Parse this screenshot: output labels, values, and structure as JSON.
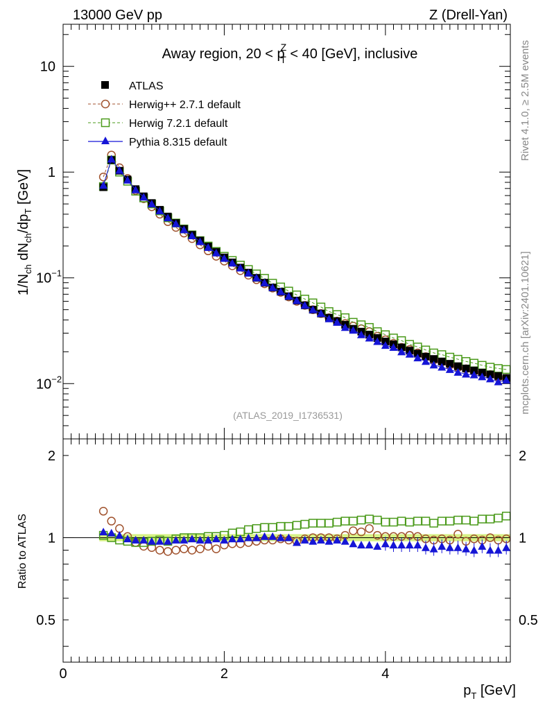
{
  "header": {
    "left": "13000 GeV pp",
    "right": "Z (Drell-Yan)"
  },
  "side_labels": {
    "top": "Rivet 4.1.0, ≥ 2.5M events",
    "bottom": "mcplots.cern.ch [arXiv:2401.10621]"
  },
  "chart_data": [
    {
      "type": "scatter",
      "panel": "main",
      "title": "Away region, 20 < p_T^Z < 40 [GeV], inclusive",
      "title_parts": {
        "pre": "Away region, 20 < p",
        "sub": "T",
        "sup": "Z",
        "post": " < 40 [GeV], inclusive"
      },
      "ylabel": "1/N_ch dN_ch/dp_T [GeV]",
      "ylabel_parts": {
        "a": "1/N",
        "a_sub": "ch",
        "b": " dN",
        "b_sub": "ch",
        "c": "/dp",
        "c_sub": "T",
        "d": " [GeV]"
      },
      "xlim": [
        0,
        5.55
      ],
      "ylim": [
        0.003,
        25
      ],
      "yscale": "log",
      "ytick_labels": [
        {
          "value": 10,
          "label": "10"
        },
        {
          "value": 1,
          "label": "1"
        },
        {
          "value": 0.1,
          "label": "10",
          "exp": "−1"
        },
        {
          "value": 0.01,
          "label": "10",
          "exp": "−2"
        }
      ],
      "watermark": "(ATLAS_2019_I1736531)",
      "legend_position": "top-left",
      "x": [
        0.5,
        0.6,
        0.7,
        0.8,
        0.9,
        1.0,
        1.1,
        1.2,
        1.3,
        1.4,
        1.5,
        1.6,
        1.7,
        1.8,
        1.9,
        2.0,
        2.1,
        2.2,
        2.3,
        2.4,
        2.5,
        2.6,
        2.7,
        2.8,
        2.9,
        3.0,
        3.1,
        3.2,
        3.3,
        3.4,
        3.5,
        3.6,
        3.7,
        3.8,
        3.9,
        4.0,
        4.1,
        4.2,
        4.3,
        4.4,
        4.5,
        4.6,
        4.7,
        4.8,
        4.9,
        5.0,
        5.1,
        5.2,
        5.3,
        5.4,
        5.5
      ],
      "series": [
        {
          "name": "ATLAS",
          "marker": "square-filled",
          "color": "#000000",
          "values": [
            0.72,
            1.3,
            1.03,
            0.85,
            0.69,
            0.59,
            0.51,
            0.44,
            0.38,
            0.33,
            0.29,
            0.255,
            0.225,
            0.198,
            0.176,
            0.156,
            0.14,
            0.125,
            0.112,
            0.1,
            0.09,
            0.081,
            0.074,
            0.067,
            0.061,
            0.055,
            0.05,
            0.046,
            0.042,
            0.039,
            0.036,
            0.033,
            0.031,
            0.029,
            0.027,
            0.025,
            0.0235,
            0.022,
            0.0205,
            0.0192,
            0.018,
            0.0171,
            0.0162,
            0.0154,
            0.0146,
            0.0139,
            0.0133,
            0.0127,
            0.0122,
            0.0118,
            0.0113
          ]
        },
        {
          "name": "Herwig++ 2.7.1 default",
          "marker": "circle-open",
          "line": "dashed",
          "color": "#a0522d",
          "values": [
            0.9,
            1.45,
            1.1,
            0.87,
            0.67,
            0.56,
            0.47,
            0.4,
            0.34,
            0.3,
            0.265,
            0.235,
            0.205,
            0.18,
            0.16,
            0.144,
            0.13,
            0.117,
            0.106,
            0.096,
            0.088,
            0.08,
            0.073,
            0.066,
            0.06,
            0.055,
            0.05,
            0.046,
            0.042,
            0.039,
            0.037,
            0.035,
            0.033,
            0.031,
            0.028,
            0.026,
            0.024,
            0.022,
            0.021,
            0.0195,
            0.018,
            0.0167,
            0.016,
            0.015,
            0.0142,
            0.0138,
            0.013,
            0.0125,
            0.0122,
            0.0115,
            0.0112
          ]
        },
        {
          "name": "Herwig 7.2.1 default",
          "marker": "square-open",
          "line": "dashed",
          "color": "#4a9a1a",
          "values": [
            0.73,
            1.3,
            1.0,
            0.82,
            0.66,
            0.57,
            0.5,
            0.43,
            0.37,
            0.33,
            0.29,
            0.255,
            0.225,
            0.2,
            0.178,
            0.16,
            0.146,
            0.132,
            0.12,
            0.109,
            0.099,
            0.089,
            0.082,
            0.075,
            0.069,
            0.063,
            0.058,
            0.053,
            0.048,
            0.045,
            0.042,
            0.038,
            0.036,
            0.034,
            0.031,
            0.029,
            0.027,
            0.0255,
            0.0235,
            0.0222,
            0.0208,
            0.0195,
            0.0188,
            0.0178,
            0.017,
            0.0162,
            0.0156,
            0.0149,
            0.0143,
            0.0139,
            0.0136
          ]
        },
        {
          "name": "Pythia 8.315 default",
          "marker": "triangle-filled",
          "line": "solid",
          "color": "#1515d6",
          "values": [
            0.75,
            1.33,
            1.04,
            0.84,
            0.68,
            0.58,
            0.5,
            0.43,
            0.37,
            0.325,
            0.285,
            0.25,
            0.22,
            0.194,
            0.172,
            0.153,
            0.138,
            0.124,
            0.111,
            0.1,
            0.09,
            0.081,
            0.074,
            0.067,
            0.061,
            0.055,
            0.05,
            0.046,
            0.041,
            0.038,
            0.034,
            0.032,
            0.029,
            0.027,
            0.025,
            0.023,
            0.022,
            0.02,
            0.019,
            0.0175,
            0.0162,
            0.015,
            0.0143,
            0.0136,
            0.0128,
            0.0123,
            0.0121,
            0.0116,
            0.0111,
            0.0104,
            0.0108
          ]
        }
      ]
    },
    {
      "type": "scatter",
      "panel": "ratio",
      "ylabel": "Ratio to ATLAS",
      "xlabel": "p_T [GeV]",
      "xlabel_parts": {
        "a": "p",
        "a_sub": "T",
        "b": " [GeV]"
      },
      "xlim": [
        0,
        5.55
      ],
      "ylim": [
        0.35,
        2.3
      ],
      "yscale": "log",
      "ytick_labels": [
        {
          "value": 2,
          "label": "2"
        },
        {
          "value": 1,
          "label": "1"
        },
        {
          "value": 0.5,
          "label": "0.5"
        }
      ],
      "xtick_labels": [
        {
          "value": 0,
          "label": "0"
        },
        {
          "value": 2,
          "label": "2"
        },
        {
          "value": 4,
          "label": "4"
        }
      ],
      "band": {
        "low": 0.97,
        "high": 1.03,
        "color": "#ccee66"
      },
      "x": [
        0.5,
        0.6,
        0.7,
        0.8,
        0.9,
        1.0,
        1.1,
        1.2,
        1.3,
        1.4,
        1.5,
        1.6,
        1.7,
        1.8,
        1.9,
        2.0,
        2.1,
        2.2,
        2.3,
        2.4,
        2.5,
        2.6,
        2.7,
        2.8,
        2.9,
        3.0,
        3.1,
        3.2,
        3.3,
        3.4,
        3.5,
        3.6,
        3.7,
        3.8,
        3.9,
        4.0,
        4.1,
        4.2,
        4.3,
        4.4,
        4.5,
        4.6,
        4.7,
        4.8,
        4.9,
        5.0,
        5.1,
        5.2,
        5.3,
        5.4,
        5.5
      ],
      "series": [
        {
          "name": "Herwig++ 2.7.1 default",
          "marker": "circle-open",
          "color": "#a0522d",
          "values": [
            1.25,
            1.15,
            1.08,
            1.01,
            0.96,
            0.93,
            0.92,
            0.9,
            0.89,
            0.9,
            0.91,
            0.9,
            0.91,
            0.93,
            0.91,
            0.94,
            0.95,
            0.95,
            0.96,
            0.97,
            0.98,
            0.98,
            0.99,
            0.98,
            0.97,
            0.99,
            1.0,
            1.0,
            1.0,
            0.99,
            1.02,
            1.06,
            1.05,
            1.08,
            1.02,
            1.01,
            1.01,
            1.01,
            1.02,
            1.01,
            0.99,
            0.98,
            0.99,
            0.98,
            1.03,
            0.97,
            0.99,
            0.98,
            1.0,
            0.98,
            0.99
          ]
        },
        {
          "name": "Herwig 7.2.1 default",
          "marker": "square-open",
          "color": "#4a9a1a",
          "values": [
            1.02,
            1.0,
            0.98,
            0.97,
            0.96,
            0.96,
            0.97,
            0.98,
            0.97,
            0.99,
            1.0,
            1.0,
            1.0,
            1.01,
            1.01,
            1.02,
            1.04,
            1.05,
            1.07,
            1.08,
            1.09,
            1.09,
            1.1,
            1.1,
            1.11,
            1.12,
            1.13,
            1.13,
            1.13,
            1.14,
            1.15,
            1.15,
            1.16,
            1.17,
            1.16,
            1.14,
            1.14,
            1.15,
            1.14,
            1.15,
            1.15,
            1.13,
            1.15,
            1.15,
            1.16,
            1.16,
            1.15,
            1.17,
            1.17,
            1.18,
            1.2
          ]
        },
        {
          "name": "Pythia 8.315 default",
          "marker": "triangle-filled",
          "color": "#1515d6",
          "values": [
            1.05,
            1.04,
            1.02,
            0.99,
            0.98,
            0.98,
            0.97,
            0.97,
            0.97,
            0.98,
            0.98,
            0.99,
            0.98,
            0.98,
            0.99,
            0.98,
            0.99,
            0.99,
            1.0,
            1.0,
            1.01,
            1.01,
            1.0,
            1.0,
            0.96,
            0.98,
            0.97,
            0.98,
            0.97,
            0.98,
            0.97,
            0.95,
            0.94,
            0.94,
            0.93,
            0.95,
            0.94,
            0.94,
            0.94,
            0.94,
            0.92,
            0.91,
            0.93,
            0.92,
            0.92,
            0.91,
            0.9,
            0.93,
            0.9,
            0.9,
            0.92
          ]
        }
      ]
    }
  ]
}
